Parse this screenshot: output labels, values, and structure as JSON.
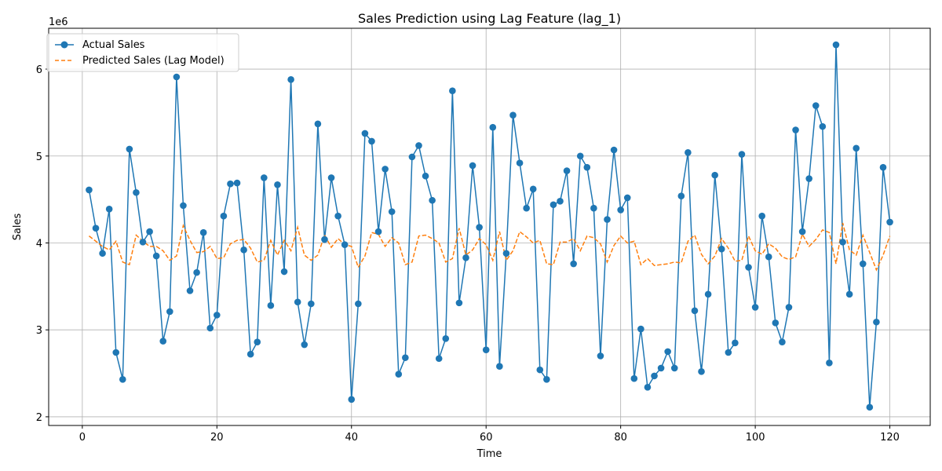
{
  "chart_data": {
    "type": "line",
    "title": "Sales Prediction using Lag Feature (lag_1)",
    "xlabel": "Time",
    "ylabel": "Sales",
    "y_scale_label": "1e6",
    "xlim": [
      -5,
      126
    ],
    "ylim": [
      1.9,
      6.47
    ],
    "x_ticks": [
      0,
      20,
      40,
      60,
      80,
      100,
      120
    ],
    "x_tick_labels": [
      "0",
      "20",
      "40",
      "60",
      "80",
      "100",
      "120"
    ],
    "y_ticks": [
      2,
      3,
      4,
      5,
      6
    ],
    "y_tick_labels": [
      "2",
      "3",
      "4",
      "5",
      "6"
    ],
    "grid": true,
    "legend_position": "top-left",
    "x": [
      1,
      2,
      3,
      4,
      5,
      6,
      7,
      8,
      9,
      10,
      11,
      12,
      13,
      14,
      15,
      16,
      17,
      18,
      19,
      20,
      21,
      22,
      23,
      24,
      25,
      26,
      27,
      28,
      29,
      30,
      31,
      32,
      33,
      34,
      35,
      36,
      37,
      38,
      39,
      40,
      41,
      42,
      43,
      44,
      45,
      46,
      47,
      48,
      49,
      50,
      51,
      52,
      53,
      54,
      55,
      56,
      57,
      58,
      59,
      60,
      61,
      62,
      63,
      64,
      65,
      66,
      67,
      68,
      69,
      70,
      71,
      72,
      73,
      74,
      75,
      76,
      77,
      78,
      79,
      80,
      81,
      82,
      83,
      84,
      85,
      86,
      87,
      88,
      89,
      90,
      91,
      92,
      93,
      94,
      95,
      96,
      97,
      98,
      99,
      100,
      101,
      102,
      103,
      104,
      105,
      106,
      107,
      108,
      109,
      110,
      111,
      112,
      113,
      114,
      115,
      116,
      117,
      118,
      119,
      120
    ],
    "series": [
      {
        "name": "Actual Sales",
        "color": "#1f77b4",
        "style": "solid-marker",
        "values": [
          4.61,
          4.17,
          3.88,
          4.39,
          2.74,
          2.43,
          5.08,
          4.58,
          4.01,
          4.13,
          3.85,
          2.87,
          3.21,
          5.91,
          4.43,
          3.45,
          3.66,
          4.12,
          3.02,
          3.17,
          4.31,
          4.68,
          4.69,
          3.92,
          2.72,
          2.86,
          4.75,
          3.28,
          4.67,
          3.67,
          5.88,
          3.32,
          2.83,
          3.3,
          5.37,
          4.04,
          4.75,
          4.31,
          3.98,
          2.2,
          3.3,
          5.26,
          5.17,
          4.13,
          4.85,
          4.36,
          2.49,
          2.68,
          4.99,
          5.12,
          4.77,
          4.49,
          2.67,
          2.9,
          5.75,
          3.31,
          3.83,
          4.89,
          4.18,
          2.77,
          5.33,
          2.58,
          3.88,
          5.47,
          4.92,
          4.4,
          4.62,
          2.54,
          2.43,
          4.44,
          4.48,
          4.83,
          3.76,
          5.0,
          4.87,
          4.4,
          2.7,
          4.27,
          5.07,
          4.38,
          4.52,
          2.44,
          3.01,
          2.34,
          2.47,
          2.56,
          2.75,
          2.56,
          4.54,
          5.04,
          3.22,
          2.52,
          3.41,
          4.78,
          3.93,
          2.74,
          2.85,
          5.02,
          3.72,
          3.26,
          4.31,
          3.84,
          3.08,
          2.86,
          3.26,
          5.3,
          4.13,
          4.74,
          5.58,
          5.34,
          2.62,
          6.28,
          4.01,
          3.41,
          5.09,
          3.76,
          2.11,
          3.09,
          4.87,
          4.24
        ]
      },
      {
        "name": "Predicted Sales (Lag Model)",
        "color": "#ff7f0e",
        "style": "dashed",
        "values": [
          4.08,
          4.02,
          3.96,
          3.92,
          4.02,
          3.78,
          3.75,
          4.09,
          4.02,
          3.96,
          3.96,
          3.91,
          3.8,
          3.85,
          4.2,
          4.03,
          3.89,
          3.9,
          3.96,
          3.82,
          3.83,
          3.99,
          4.03,
          4.04,
          3.94,
          3.78,
          3.8,
          4.03,
          3.86,
          4.03,
          3.91,
          4.18,
          3.86,
          3.8,
          3.86,
          4.09,
          3.95,
          4.05,
          3.98,
          3.96,
          3.72,
          3.85,
          4.12,
          4.1,
          3.96,
          4.06,
          4.0,
          3.75,
          3.78,
          4.08,
          4.09,
          4.05,
          4.0,
          3.78,
          3.82,
          4.17,
          3.86,
          3.92,
          4.05,
          3.98,
          3.8,
          4.13,
          3.8,
          3.91,
          4.13,
          4.07,
          4.0,
          4.03,
          3.76,
          3.75,
          4.01,
          4.01,
          4.05,
          3.91,
          4.08,
          4.06,
          3.99,
          3.78,
          3.97,
          4.08,
          4.0,
          4.02,
          3.75,
          3.82,
          3.74,
          3.75,
          3.76,
          3.78,
          3.77,
          4.02,
          4.09,
          3.87,
          3.76,
          3.85,
          4.05,
          3.94,
          3.79,
          3.8,
          4.08,
          3.91,
          3.87,
          3.99,
          3.94,
          3.84,
          3.81,
          3.84,
          4.1,
          3.96,
          4.04,
          4.15,
          4.12,
          3.76,
          4.23,
          3.92,
          3.86,
          4.09,
          3.89,
          3.69,
          3.86,
          4.08
        ]
      }
    ]
  }
}
